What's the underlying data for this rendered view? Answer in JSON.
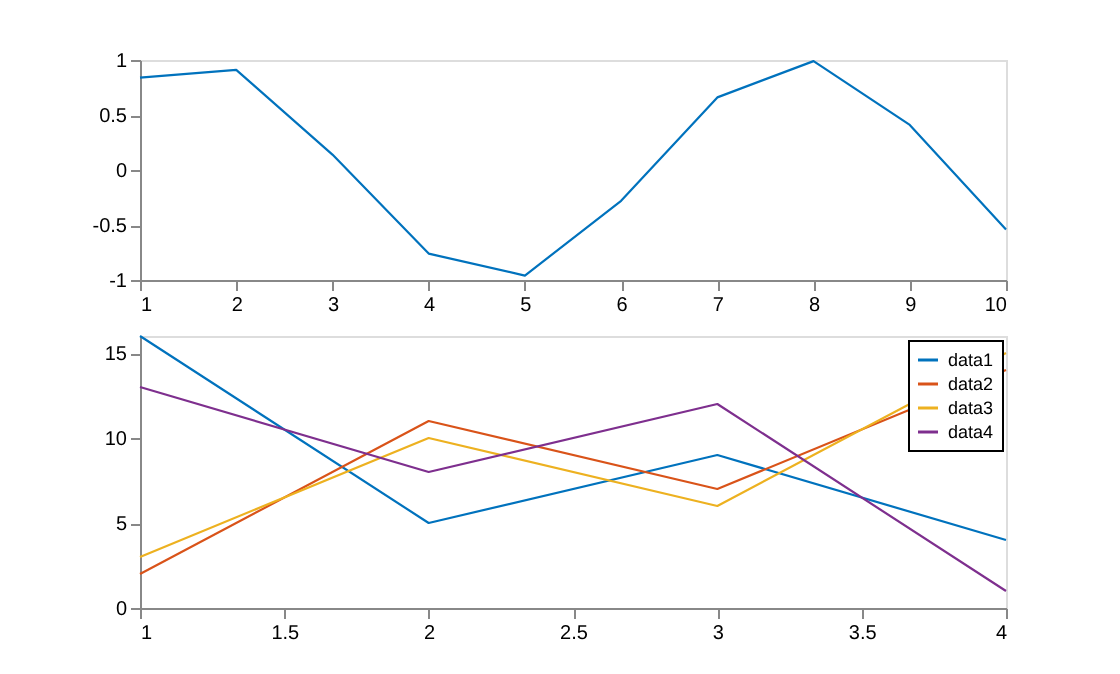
{
  "chart_data": [
    {
      "type": "line",
      "x": [
        1,
        2,
        3,
        4,
        5,
        6,
        7,
        8,
        9,
        10
      ],
      "series": [
        {
          "color": "#0072bd",
          "values": [
            0.84,
            0.91,
            0.14,
            -0.76,
            -0.96,
            -0.28,
            0.66,
            0.99,
            0.41,
            -0.54
          ]
        }
      ],
      "xlim": [
        1,
        10
      ],
      "xticks": [
        1,
        2,
        3,
        4,
        5,
        6,
        7,
        8,
        9,
        10
      ],
      "ylim": [
        -1,
        1
      ],
      "yticks": [
        -1,
        -0.5,
        0,
        0.5,
        1
      ],
      "grid": false,
      "legend": false
    },
    {
      "type": "line",
      "x": [
        1,
        2,
        3,
        4
      ],
      "series": [
        {
          "name": "data1",
          "color": "#0072bd",
          "values": [
            16,
            5,
            9,
            4
          ]
        },
        {
          "name": "data2",
          "color": "#d95319",
          "values": [
            2,
            11,
            7,
            14
          ]
        },
        {
          "name": "data3",
          "color": "#edb120",
          "values": [
            3,
            10,
            6,
            15
          ]
        },
        {
          "name": "data4",
          "color": "#7e2f8e",
          "values": [
            13,
            8,
            12,
            1
          ]
        }
      ],
      "xlim": [
        1,
        4
      ],
      "xticks": [
        1,
        1.5,
        2,
        2.5,
        3,
        3.5,
        4
      ],
      "ylim": [
        0,
        16
      ],
      "yticks": [
        0,
        5,
        10,
        15
      ],
      "grid": false,
      "legend": "top right"
    }
  ]
}
